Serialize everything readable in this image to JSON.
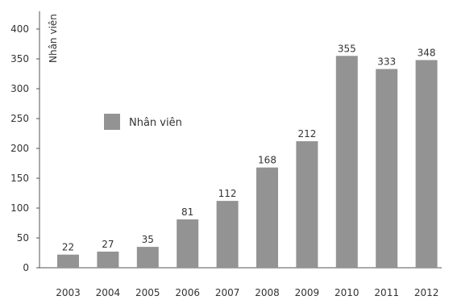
{
  "chart_data": {
    "type": "bar",
    "categories": [
      "2003",
      "2004",
      "2005",
      "2006",
      "2007",
      "2008",
      "2009",
      "2010",
      "2011",
      "2012"
    ],
    "series": [
      {
        "name": "Nhân viên",
        "values": [
          22,
          27,
          35,
          81,
          112,
          168,
          212,
          355,
          333,
          348
        ]
      }
    ],
    "data_labels": [
      "22",
      "27",
      "35",
      "81",
      "112",
      "168",
      "212",
      "355",
      "333",
      "348"
    ],
    "ylabel": "Nhân viên",
    "xlabel": "",
    "title": "",
    "ylim": [
      0,
      400
    ],
    "yticks": [
      "0",
      "50",
      "100",
      "150",
      "200",
      "250",
      "300",
      "350",
      "400"
    ],
    "grid": false,
    "legend_position": "left",
    "bar_color": "#939393",
    "axis_color": "#555555"
  }
}
